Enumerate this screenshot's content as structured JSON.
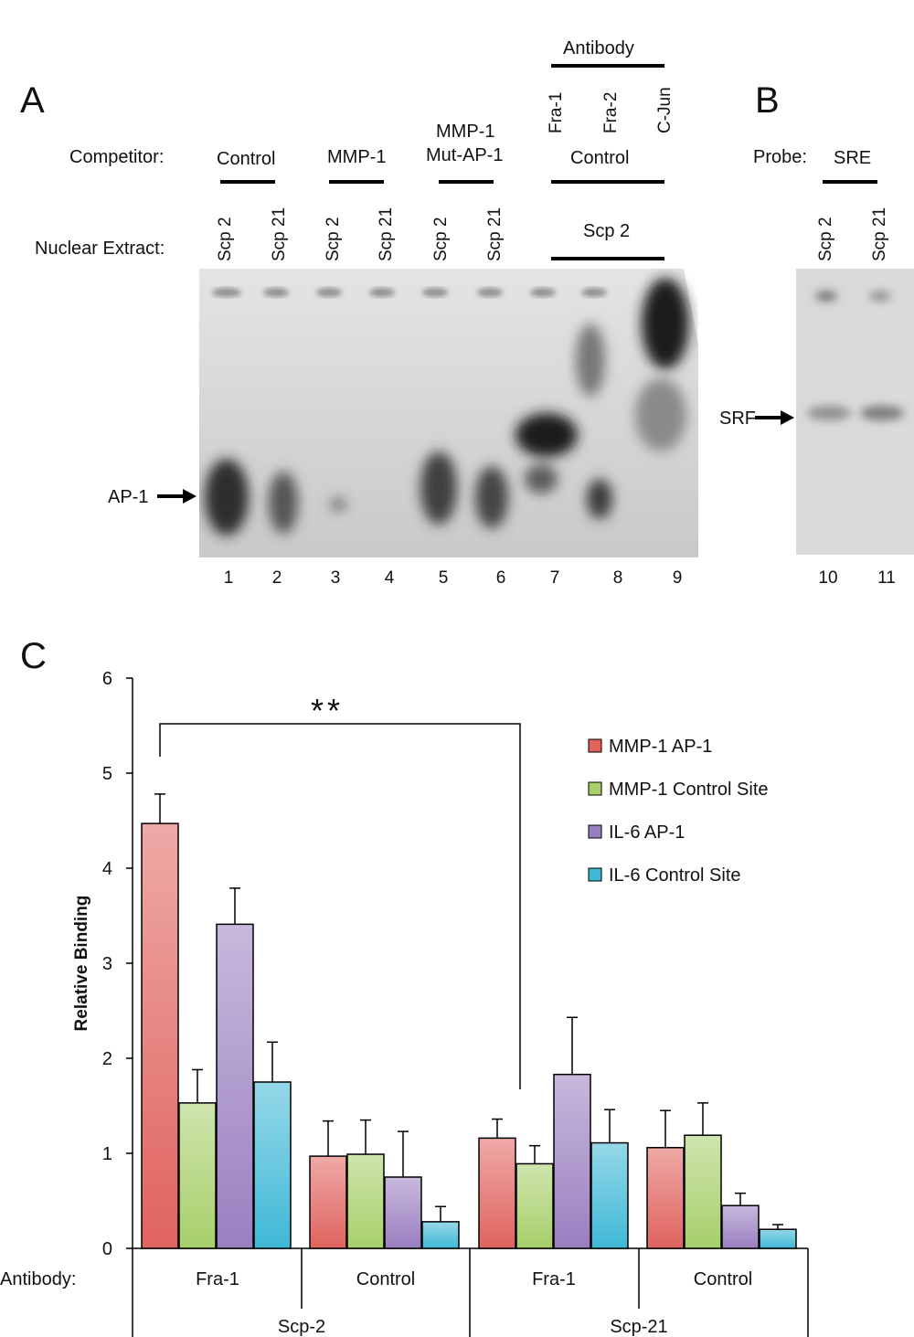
{
  "panels": {
    "a": "A",
    "b": "B",
    "c": "C"
  },
  "panel_a": {
    "competitor_label": "Competitor:",
    "nuclear_extract_label": "Nuclear Extract:",
    "competitors": [
      "Control",
      "MMP-1",
      "MMP-1",
      "Mut-AP-1",
      "Control"
    ],
    "antibody_header": "Antibody",
    "antibodies": [
      "Fra-1",
      "Fra-2",
      "C-Jun"
    ],
    "extracts": [
      "Scp 2",
      "Scp 21",
      "Scp 2",
      "Scp 21",
      "Scp 2",
      "Scp 21"
    ],
    "extract_group": "Scp 2",
    "band_label": "AP-1",
    "lanes": [
      "1",
      "2",
      "3",
      "4",
      "5",
      "6",
      "7",
      "8",
      "9"
    ]
  },
  "panel_b": {
    "probe_label": "Probe:",
    "probe": "SRE",
    "extracts": [
      "Scp 2",
      "Scp 21"
    ],
    "band_label": "SRF",
    "lanes": [
      "10",
      "11"
    ]
  },
  "chart_data": {
    "type": "bar",
    "title": "",
    "xlabel": "Antibody:",
    "ylabel": "Relative Binding",
    "ylim": [
      0,
      6
    ],
    "yticks": [
      "0",
      "1",
      "2",
      "3",
      "4",
      "5",
      "6"
    ],
    "categories": [
      "Fra-1",
      "Control",
      "Fra-1",
      "Control"
    ],
    "groups": [
      "Scp-2",
      "Scp-21"
    ],
    "series": [
      {
        "name": "MMP-1 AP-1",
        "color": "#e0635e",
        "values": [
          4.47,
          0.97,
          1.16,
          1.06
        ],
        "errors": [
          0.31,
          0.37,
          0.2,
          0.39
        ]
      },
      {
        "name": "MMP-1 Control Site",
        "color": "#a7cf6a",
        "values": [
          1.53,
          0.99,
          0.89,
          1.19
        ],
        "errors": [
          0.35,
          0.36,
          0.19,
          0.34
        ]
      },
      {
        "name": "IL-6 AP-1",
        "color": "#9a7fc0",
        "values": [
          3.41,
          0.75,
          1.83,
          0.45
        ],
        "errors": [
          0.38,
          0.48,
          0.6,
          0.13
        ]
      },
      {
        "name": "IL-6 Control Site",
        "color": "#3fb8d6",
        "values": [
          1.75,
          0.28,
          1.11,
          0.2
        ],
        "errors": [
          0.42,
          0.16,
          0.35,
          0.05
        ]
      }
    ],
    "significance": "**",
    "legend_position": "top-right"
  }
}
